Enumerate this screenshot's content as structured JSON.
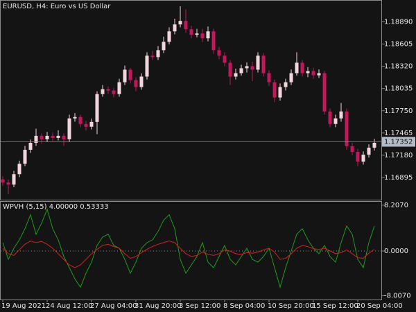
{
  "chart_data": [
    {
      "type": "candlestick",
      "title": "EURUSD, H4:  Euro vs US Dollar",
      "open": [
        1.1687,
        1.1683,
        1.16803,
        1.16937,
        1.17071,
        1.1725,
        1.17339,
        1.17429,
        1.17384,
        1.17429,
        1.17402,
        1.17429,
        1.17384,
        1.17652,
        1.1767,
        1.17581,
        1.17545,
        1.17607,
        1.17964,
        1.18027,
        1.18009,
        1.17964,
        1.18116,
        1.18277,
        1.18143,
        1.18054,
        1.18188,
        1.18456,
        1.18438,
        1.18527,
        1.18634,
        1.18768,
        1.18857,
        1.18902,
        1.18795,
        1.18724,
        1.18741,
        1.18679,
        1.18768,
        1.18527,
        1.18456,
        1.18366,
        1.18188,
        1.18232,
        1.18295,
        1.18322,
        1.18277,
        1.18456,
        1.18232,
        1.18116,
        1.1792,
        1.18054,
        1.18116,
        1.18232,
        1.18366,
        1.18232,
        1.18259,
        1.18205,
        1.18232,
        1.17741,
        1.17581,
        1.17652,
        1.17741,
        1.17295,
        1.17223,
        1.17098,
        1.17187,
        1.17277
      ],
      "high": [
        1.1691,
        1.1687,
        1.1698,
        1.1711,
        1.173,
        1.1738,
        1.1752,
        1.1746,
        1.1748,
        1.1747,
        1.175,
        1.1746,
        1.177,
        1.1772,
        1.177,
        1.1762,
        1.1765,
        1.18,
        1.1808,
        1.1806,
        1.1804,
        1.1816,
        1.1833,
        1.183,
        1.1818,
        1.1823,
        1.185,
        1.1852,
        1.1858,
        1.187,
        1.1882,
        1.1893,
        1.1909,
        1.1905,
        1.1884,
        1.188,
        1.188,
        1.1883,
        1.188,
        1.1857,
        1.185,
        1.184,
        1.1829,
        1.1834,
        1.1837,
        1.1838,
        1.185,
        1.1849,
        1.1827,
        1.1815,
        1.181,
        1.1816,
        1.1828,
        1.185,
        1.184,
        1.1831,
        1.183,
        1.1828,
        1.1826,
        1.1778,
        1.177,
        1.1785,
        1.1778,
        1.1734,
        1.1726,
        1.1723,
        1.1732,
        1.1739
      ],
      "low": [
        1.1679,
        1.1668,
        1.1677,
        1.169,
        1.1704,
        1.1721,
        1.173,
        1.1733,
        1.1735,
        1.1736,
        1.1737,
        1.173,
        1.1735,
        1.1761,
        1.1754,
        1.175,
        1.1751,
        1.1745,
        1.1793,
        1.1797,
        1.1792,
        1.1793,
        1.1808,
        1.181,
        1.18,
        1.1802,
        1.1815,
        1.184,
        1.184,
        1.1849,
        1.186,
        1.1873,
        1.1882,
        1.1875,
        1.1868,
        1.1869,
        1.1863,
        1.1864,
        1.1848,
        1.1841,
        1.1832,
        1.1808,
        1.1815,
        1.182,
        1.1824,
        1.1813,
        1.1824,
        1.1819,
        1.1807,
        1.1786,
        1.1788,
        1.1801,
        1.1808,
        1.182,
        1.1819,
        1.1818,
        1.1816,
        1.1817,
        1.177,
        1.1754,
        1.1754,
        1.1761,
        1.1725,
        1.1718,
        1.1704,
        1.1706,
        1.1715,
        1.1724
      ],
      "close": [
        1.1683,
        1.16803,
        1.16937,
        1.17071,
        1.1725,
        1.17339,
        1.17429,
        1.17384,
        1.17429,
        1.17402,
        1.17429,
        1.17384,
        1.17652,
        1.1767,
        1.17581,
        1.17545,
        1.17607,
        1.17964,
        1.18027,
        1.18009,
        1.17964,
        1.18116,
        1.18277,
        1.18143,
        1.18054,
        1.18188,
        1.18456,
        1.18438,
        1.18527,
        1.18634,
        1.18768,
        1.18857,
        1.18902,
        1.18795,
        1.18724,
        1.18741,
        1.18679,
        1.18768,
        1.18527,
        1.18456,
        1.18366,
        1.18188,
        1.18232,
        1.18295,
        1.18322,
        1.18277,
        1.18456,
        1.18232,
        1.18116,
        1.1792,
        1.18054,
        1.18116,
        1.18232,
        1.18366,
        1.18232,
        1.18259,
        1.18205,
        1.18232,
        1.17741,
        1.17581,
        1.17652,
        1.17741,
        1.17295,
        1.17223,
        1.17098,
        1.17187,
        1.17277,
        1.17339
      ],
      "up_color": "#f3d6dd",
      "down_color": "#c2185b",
      "ylim": [
        1.1661,
        1.1917
      ],
      "yticks": [
        1.16895,
        {
          "value": 1.1718,
          "label": "1.17180"
        },
        1.17465,
        {
          "value": 1.1775,
          "label": "1.17750"
        },
        1.18035,
        {
          "value": 1.1832,
          "label": "1.18320"
        },
        1.18605,
        {
          "value": 1.1889,
          "label": "1.18890"
        }
      ],
      "last_price": 1.17352,
      "x_labels": [
        "19 Aug 2021",
        "24 Aug 12:00",
        "27 Aug 04:00",
        "31 Aug 20:00",
        "3 Sep 12:00",
        "8 Sep 04:00",
        "10 Sep 20:00",
        "15 Sep 12:00",
        "20 Sep 04:00"
      ]
    },
    {
      "type": "line",
      "title": "WPVH (5,15) 4.00000 0.53333",
      "series": [
        {
          "color": "#1f9a1f",
          "values": [
            1.5,
            -1.5,
            0.5,
            2,
            4,
            6.5,
            3,
            5,
            7.5,
            4,
            2,
            -1,
            -3,
            -5,
            -6.5,
            -4,
            -2,
            1,
            2.5,
            3,
            1,
            0.5,
            -1.5,
            -4,
            -2,
            0.5,
            1.5,
            2,
            3.5,
            5.5,
            6.5,
            4,
            -1.5,
            -4,
            -2.5,
            -1,
            1.5,
            -2,
            -3,
            -1,
            1,
            -1.5,
            -2.5,
            -1,
            0.5,
            -1.5,
            -2,
            -1,
            0.5,
            -3,
            -6.5,
            -3,
            0,
            3,
            4,
            2,
            0.5,
            -0.5,
            1,
            -1,
            -2,
            1.5,
            4.5,
            3,
            -1.5,
            -3,
            1.5,
            4.5
          ]
        },
        {
          "color": "#d42020",
          "values": [
            0.5,
            -0.5,
            -0.8,
            0.2,
            1.2,
            1.8,
            1.5,
            1.7,
            1.2,
            0.5,
            -0.5,
            -1.5,
            -2.5,
            -3,
            -2.5,
            -1.5,
            -0.5,
            0.3,
            1,
            1.2,
            0.8,
            0.5,
            -0.5,
            -1.3,
            -1,
            -0.3,
            0.3,
            0.8,
            1.2,
            1.5,
            1.8,
            1.5,
            0.5,
            -0.5,
            -1,
            -0.8,
            -0.2,
            -0.6,
            -0.8,
            -0.5,
            0.2,
            0,
            -0.5,
            -0.6,
            -0.3,
            -0.4,
            -0.2,
            0.2,
            0.5,
            -0.2,
            -1.5,
            -1.3,
            -0.5,
            0.5,
            1,
            0.8,
            0.4,
            0.3,
            0.5,
            0,
            -0.5,
            -0.3,
            0.2,
            -0.5,
            -1.2,
            -1.3,
            -0.4,
            0.3
          ]
        }
      ],
      "ylim": [
        -8.7,
        8.7
      ],
      "yticks": [
        {
          "value": 8.207,
          "label": "8.2070"
        },
        {
          "value": 0,
          "label": "0.0000"
        },
        {
          "value": -8.007,
          "label": "-8.0070"
        }
      ]
    }
  ]
}
